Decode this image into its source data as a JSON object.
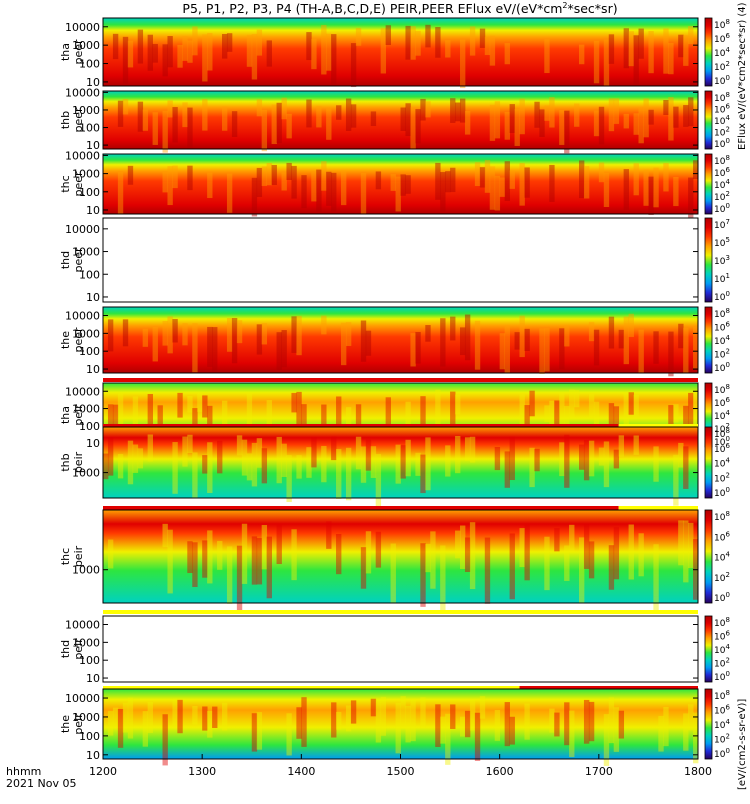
{
  "chart_data": {
    "type": "heatmap",
    "title": "P5, P1, P2, P3, P4 (TH-A,B,C,D,E) PEIR,PEER EFlux eV/(eV*cm",
    "title_sup": "2",
    "title_tail": "*sec*sr)",
    "x_tick_labels": [
      "1200",
      "1300",
      "1400",
      "1500",
      "1600",
      "1700",
      "1800"
    ],
    "x_ticks": [
      1200,
      1300,
      1400,
      1500,
      1600,
      1700,
      1800
    ],
    "xlim": [
      1200,
      1800
    ],
    "time_label": "hhmm",
    "date_label": "2021 Nov 05",
    "colorbar_label": "[eV/(cm2-s-sr-eV)]",
    "colorbar_stack_label": "EFlux eV/(eV*cm2*sec*sr) (4)",
    "colors": {
      "colormap": [
        "#26005c",
        "#1f2bd8",
        "#009cf2",
        "#00d2c0",
        "#2ee63f",
        "#f0f000",
        "#ffa000",
        "#ff3a00",
        "#e00000",
        "#b00000"
      ],
      "mode_bar_red": "#e00000",
      "mode_bar_yellow": "#ffff00",
      "cyan_fill": "#00d6ff"
    },
    "panels": [
      {
        "id": "tha_peer",
        "label_top": "tha",
        "label_bottom": "peer",
        "y_log": true,
        "ylim": [
          6,
          30000
        ],
        "y_tick_labels": [
          "10",
          "100",
          "1000",
          "10000"
        ],
        "y_ticks": [
          10,
          100,
          1000,
          10000
        ],
        "cbar_tick_labels": [
          "10",
          "10",
          "10",
          "10",
          "10"
        ],
        "cbar_tick_exps": [
          "8",
          "6",
          "4",
          "2",
          "0"
        ],
        "mode_bar": ""
      },
      {
        "id": "thb_peer",
        "label_top": "thb",
        "label_bottom": "peer",
        "y_log": true,
        "ylim": [
          6,
          12000
        ],
        "y_tick_labels": [
          "10",
          "100",
          "1000",
          "10000"
        ],
        "y_ticks": [
          10,
          100,
          1000,
          10000
        ],
        "cbar_tick_labels": [
          "10",
          "10",
          "10",
          "10",
          "10"
        ],
        "cbar_tick_exps": [
          "8",
          "6",
          "4",
          "2",
          "0"
        ],
        "mode_bar": ""
      },
      {
        "id": "thc_peer",
        "label_top": "thc",
        "label_bottom": "peer",
        "y_log": true,
        "ylim": [
          6,
          12000
        ],
        "y_tick_labels": [
          "10",
          "100",
          "1000",
          "10000"
        ],
        "y_ticks": [
          10,
          100,
          1000,
          10000
        ],
        "cbar_tick_labels": [
          "10",
          "10",
          "10",
          "10",
          "10"
        ],
        "cbar_tick_exps": [
          "8",
          "6",
          "4",
          "2",
          "0"
        ],
        "mode_bar": ""
      },
      {
        "id": "thd_peer",
        "label_top": "thd",
        "label_bottom": "peer",
        "y_log": true,
        "ylim": [
          6,
          30000
        ],
        "y_tick_labels": [
          "10",
          "100",
          "1000",
          "10000"
        ],
        "y_ticks": [
          10,
          100,
          1000,
          10000
        ],
        "cbar_tick_labels": [
          "10",
          "10",
          "10",
          "10",
          "10"
        ],
        "cbar_tick_exps": [
          "7",
          "5",
          "3",
          "1",
          "0"
        ],
        "mode_bar": "",
        "empty": true
      },
      {
        "id": "the_peer",
        "label_top": "the",
        "label_bottom": "peer",
        "y_log": true,
        "ylim": [
          6,
          30000
        ],
        "y_tick_labels": [
          "10",
          "100",
          "1000",
          "10000"
        ],
        "y_ticks": [
          10,
          100,
          1000,
          10000
        ],
        "cbar_tick_labels": [
          "10",
          "10",
          "10",
          "10",
          "10"
        ],
        "cbar_tick_exps": [
          "8",
          "6",
          "4",
          "2",
          "0"
        ],
        "mode_bar": "red"
      },
      {
        "id": "tha_peir",
        "label_top": "tha",
        "label_bottom": "peir",
        "y_log": true,
        "ylim": [
          6,
          30000
        ],
        "y_tick_labels": [
          "10",
          "100",
          "1000",
          "10000"
        ],
        "y_ticks": [
          10,
          100,
          1000,
          10000
        ],
        "cbar_tick_labels": [
          "10",
          "10",
          "10",
          "10",
          "10"
        ],
        "cbar_tick_exps": [
          "8",
          "6",
          "4",
          "2",
          "0"
        ],
        "mode_bar": "red"
      },
      {
        "id": "thb_peir",
        "label_top": "thb",
        "label_bottom": "peir",
        "y_log": true,
        "ylim": [
          150,
          30000
        ],
        "y_tick_labels": [
          "1000"
        ],
        "y_ticks": [
          1000
        ],
        "cbar_tick_labels": [
          "10",
          "10",
          "10",
          "10",
          "10"
        ],
        "cbar_tick_exps": [
          "8",
          "6",
          "4",
          "2",
          "0"
        ],
        "mode_bar": "red-yellow"
      },
      {
        "id": "thc_peir",
        "label_top": "thc",
        "label_bottom": "peir",
        "y_log": true,
        "ylim": [
          150,
          30000
        ],
        "y_tick_labels": [
          "1000"
        ],
        "y_ticks": [
          1000
        ],
        "cbar_tick_labels": [
          "10",
          "10",
          "10",
          "10",
          "10"
        ],
        "cbar_tick_exps": [
          "8",
          "6",
          "4",
          "2",
          "0"
        ],
        "mode_bar": "red-yellow"
      },
      {
        "id": "thd_peir",
        "label_top": "thd",
        "label_bottom": "peir",
        "y_log": true,
        "ylim": [
          6,
          30000
        ],
        "y_tick_labels": [
          "10",
          "100",
          "1000",
          "10000"
        ],
        "y_ticks": [
          10,
          100,
          1000,
          10000
        ],
        "cbar_tick_labels": [
          "10",
          "10",
          "10",
          "10",
          "10"
        ],
        "cbar_tick_exps": [
          "8",
          "6",
          "4",
          "2",
          "0"
        ],
        "mode_bar": "yellow",
        "empty": true
      },
      {
        "id": "the_peir",
        "label_top": "the",
        "label_bottom": "peir",
        "y_log": true,
        "ylim": [
          6,
          30000
        ],
        "y_tick_labels": [
          "10",
          "100",
          "1000",
          "10000"
        ],
        "y_ticks": [
          10,
          100,
          1000,
          10000
        ],
        "cbar_tick_labels": [
          "10",
          "10",
          "10",
          "10",
          "10"
        ],
        "cbar_tick_exps": [
          "8",
          "6",
          "4",
          "2",
          "0"
        ],
        "mode_bar": "yellow-red"
      }
    ]
  }
}
